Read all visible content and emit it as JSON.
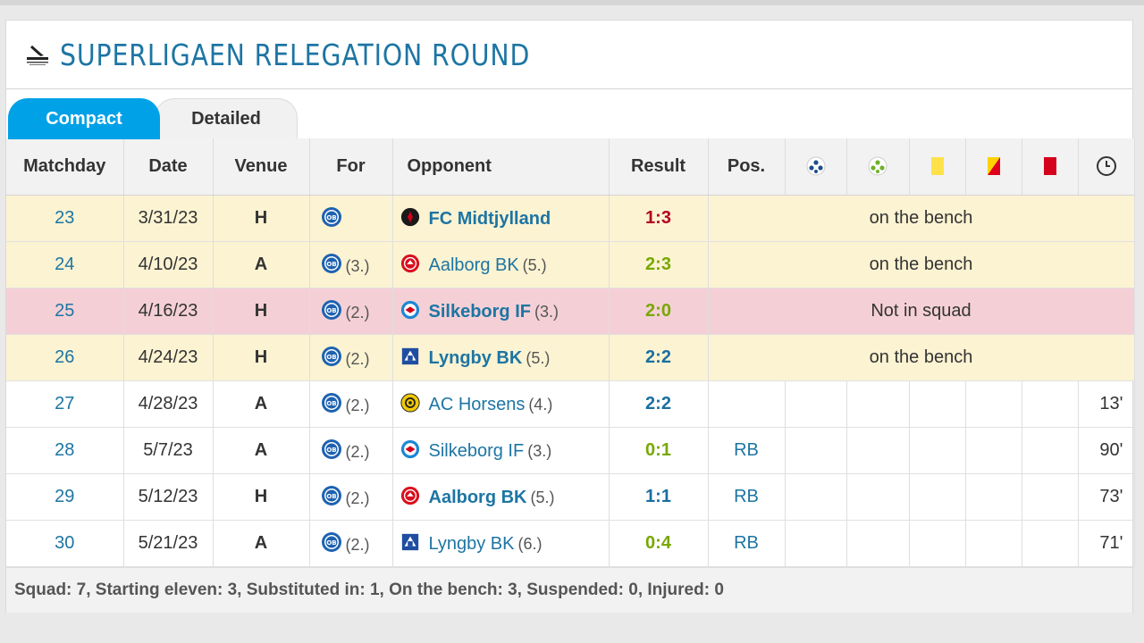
{
  "header": {
    "title": "SUPERLIGAEN RELEGATION ROUND",
    "icon": "league-icon"
  },
  "tabs": [
    {
      "label": "Compact",
      "active": true
    },
    {
      "label": "Detailed",
      "active": false
    }
  ],
  "table": {
    "columns": {
      "matchday": "Matchday",
      "date": "Date",
      "venue": "Venue",
      "for": "For",
      "opponent": "Opponent",
      "result": "Result",
      "pos": "Pos.",
      "icons": [
        "goals-icon",
        "assists-icon",
        "yellow-card-icon",
        "yellow-red-card-icon",
        "red-card-icon",
        "minutes-clock-icon"
      ]
    },
    "rows": [
      {
        "matchday": "23",
        "date": "3/31/23",
        "venue": "H",
        "for_rank": "",
        "opponent": "FC Midtjylland",
        "opp_rank": "",
        "result": "1:3",
        "outcome": "loss",
        "status": "on the bench",
        "pos": "",
        "mins": "",
        "crest": "midtjylland"
      },
      {
        "matchday": "24",
        "date": "4/10/23",
        "venue": "A",
        "for_rank": "(3.)",
        "opponent": "Aalborg BK",
        "opp_rank": "(5.)",
        "result": "2:3",
        "outcome": "win",
        "status": "on the bench",
        "pos": "",
        "mins": "",
        "crest": "aalborg"
      },
      {
        "matchday": "25",
        "date": "4/16/23",
        "venue": "H",
        "for_rank": "(2.)",
        "opponent": "Silkeborg IF",
        "opp_rank": "(3.)",
        "result": "2:0",
        "outcome": "win",
        "status": "Not in squad",
        "pos": "",
        "mins": "",
        "crest": "silkeborg"
      },
      {
        "matchday": "26",
        "date": "4/24/23",
        "venue": "H",
        "for_rank": "(2.)",
        "opponent": "Lyngby BK",
        "opp_rank": "(5.)",
        "result": "2:2",
        "outcome": "draw",
        "status": "on the bench",
        "pos": "",
        "mins": "",
        "crest": "lyngby"
      },
      {
        "matchday": "27",
        "date": "4/28/23",
        "venue": "A",
        "for_rank": "(2.)",
        "opponent": "AC Horsens",
        "opp_rank": "(4.)",
        "result": "2:2",
        "outcome": "draw",
        "status": "",
        "pos": "",
        "mins": "13'",
        "crest": "horsens"
      },
      {
        "matchday": "28",
        "date": "5/7/23",
        "venue": "A",
        "for_rank": "(2.)",
        "opponent": "Silkeborg IF",
        "opp_rank": "(3.)",
        "result": "0:1",
        "outcome": "win",
        "status": "",
        "pos": "RB",
        "mins": "90'",
        "crest": "silkeborg"
      },
      {
        "matchday": "29",
        "date": "5/12/23",
        "venue": "H",
        "for_rank": "(2.)",
        "opponent": "Aalborg BK",
        "opp_rank": "(5.)",
        "result": "1:1",
        "outcome": "draw",
        "status": "",
        "pos": "RB",
        "mins": "73'",
        "crest": "aalborg"
      },
      {
        "matchday": "30",
        "date": "5/21/23",
        "venue": "A",
        "for_rank": "(2.)",
        "opponent": "Lyngby BK",
        "opp_rank": "(6.)",
        "result": "0:4",
        "outcome": "win",
        "status": "",
        "pos": "RB",
        "mins": "71'",
        "crest": "lyngby"
      }
    ]
  },
  "footer": {
    "summary": "Squad: 7, Starting eleven: 3, Substituted in: 1, On the bench: 3, Suspended: 0, Injured: 0"
  },
  "colors": {
    "accent": "#00a1e6",
    "title": "#1d75a3",
    "bench_row": "#fcf3d2",
    "not_in_squad_row": "#f4d0d6",
    "loss": "#b4001e",
    "win": "#78a800",
    "draw": "#1a6fa0"
  }
}
